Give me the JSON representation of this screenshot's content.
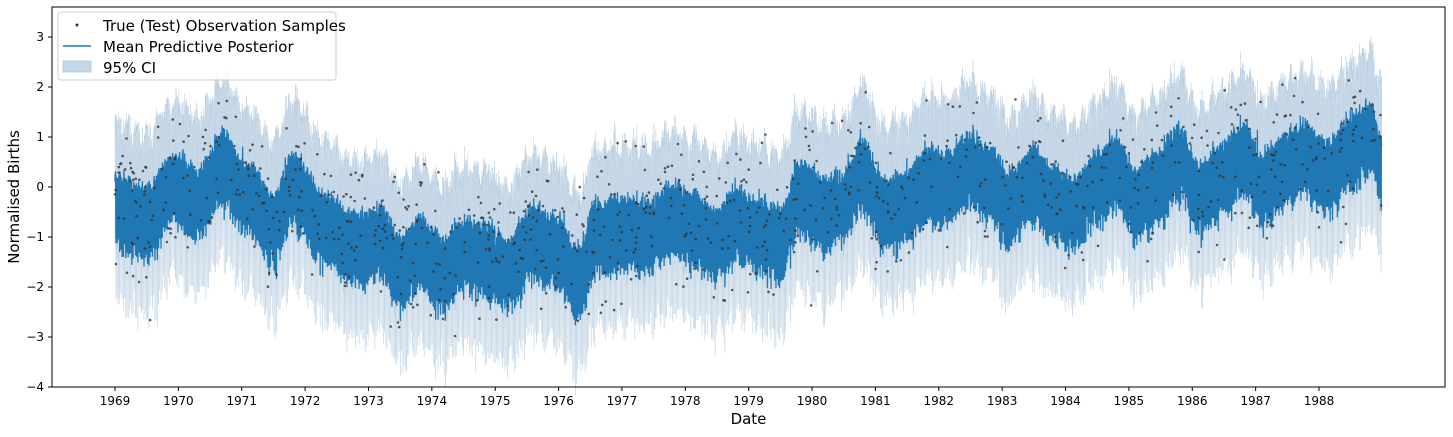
{
  "chart_data": {
    "type": "line",
    "title": "",
    "xlabel": "Date",
    "ylabel": "Normalised Births",
    "x_ticks": [
      "1969",
      "1970",
      "1971",
      "1972",
      "1973",
      "1974",
      "1975",
      "1976",
      "1977",
      "1978",
      "1979",
      "1980",
      "1981",
      "1982",
      "1983",
      "1984",
      "1985",
      "1986",
      "1987",
      "1988"
    ],
    "xlim": [
      1968.0,
      1990.0
    ],
    "ylim": [
      -4.0,
      3.6
    ],
    "y_ticks": [
      3,
      2,
      1,
      0,
      -1,
      -2,
      -3,
      -4
    ],
    "y_tick_labels": [
      "3",
      "2",
      "1",
      "0",
      "−1",
      "−2",
      "−3",
      "−4"
    ],
    "grid": false,
    "legend_position": "top-left",
    "legend": [
      {
        "label": "True (Test) Observation Samples",
        "kind": "scatter",
        "color": "#333333"
      },
      {
        "label": "Mean Predictive Posterior",
        "kind": "line",
        "color": "#1f77b4"
      },
      {
        "label": "95% CI",
        "kind": "band",
        "color": "#c5d8e8"
      }
    ],
    "series": [
      {
        "name": "Mean Predictive Posterior",
        "color": "#1f77b4",
        "x_start": 1969.0,
        "x_end": 1988.99,
        "trend_knots": [
          [
            1969.0,
            -0.2
          ],
          [
            1969.5,
            -0.5
          ],
          [
            1969.9,
            0.2
          ],
          [
            1970.3,
            -0.1
          ],
          [
            1970.7,
            0.6
          ],
          [
            1971.1,
            0.0
          ],
          [
            1971.5,
            -0.6
          ],
          [
            1971.8,
            0.2
          ],
          [
            1972.3,
            -0.6
          ],
          [
            1972.8,
            -1.0
          ],
          [
            1973.2,
            -0.9
          ],
          [
            1973.5,
            -1.5
          ],
          [
            1973.8,
            -1.1
          ],
          [
            1974.2,
            -1.5
          ],
          [
            1974.5,
            -1.1
          ],
          [
            1974.8,
            -1.2
          ],
          [
            1975.2,
            -1.5
          ],
          [
            1975.6,
            -0.9
          ],
          [
            1976.0,
            -1.1
          ],
          [
            1976.3,
            -1.7
          ],
          [
            1976.6,
            -0.8
          ],
          [
            1977.0,
            -0.7
          ],
          [
            1977.4,
            -0.8
          ],
          [
            1977.8,
            -0.4
          ],
          [
            1978.1,
            -0.6
          ],
          [
            1978.5,
            -0.9
          ],
          [
            1978.8,
            -0.5
          ],
          [
            1979.1,
            -0.7
          ],
          [
            1979.5,
            -0.9
          ],
          [
            1979.8,
            0.0
          ],
          [
            1980.2,
            -0.3
          ],
          [
            1980.5,
            -0.2
          ],
          [
            1980.8,
            0.5
          ],
          [
            1981.1,
            -0.3
          ],
          [
            1981.5,
            -0.2
          ],
          [
            1981.8,
            0.3
          ],
          [
            1982.1,
            0.2
          ],
          [
            1982.5,
            0.6
          ],
          [
            1982.8,
            0.3
          ],
          [
            1983.1,
            -0.2
          ],
          [
            1983.5,
            0.3
          ],
          [
            1983.8,
            -0.1
          ],
          [
            1984.1,
            -0.3
          ],
          [
            1984.5,
            0.2
          ],
          [
            1984.8,
            0.5
          ],
          [
            1985.1,
            -0.1
          ],
          [
            1985.5,
            0.3
          ],
          [
            1985.8,
            0.7
          ],
          [
            1986.1,
            0.0
          ],
          [
            1986.5,
            0.4
          ],
          [
            1986.8,
            0.8
          ],
          [
            1987.1,
            0.2
          ],
          [
            1987.5,
            0.6
          ],
          [
            1987.8,
            0.8
          ],
          [
            1988.1,
            0.4
          ],
          [
            1988.5,
            0.9
          ],
          [
            1988.8,
            1.2
          ],
          [
            1988.99,
            0.6
          ]
        ],
        "weekly_dip": 1.3,
        "ci_half_width": 1.1
      },
      {
        "name": "True (Test) Observation Samples",
        "color": "#333333",
        "kind": "scatter",
        "n_points": 900
      }
    ]
  }
}
